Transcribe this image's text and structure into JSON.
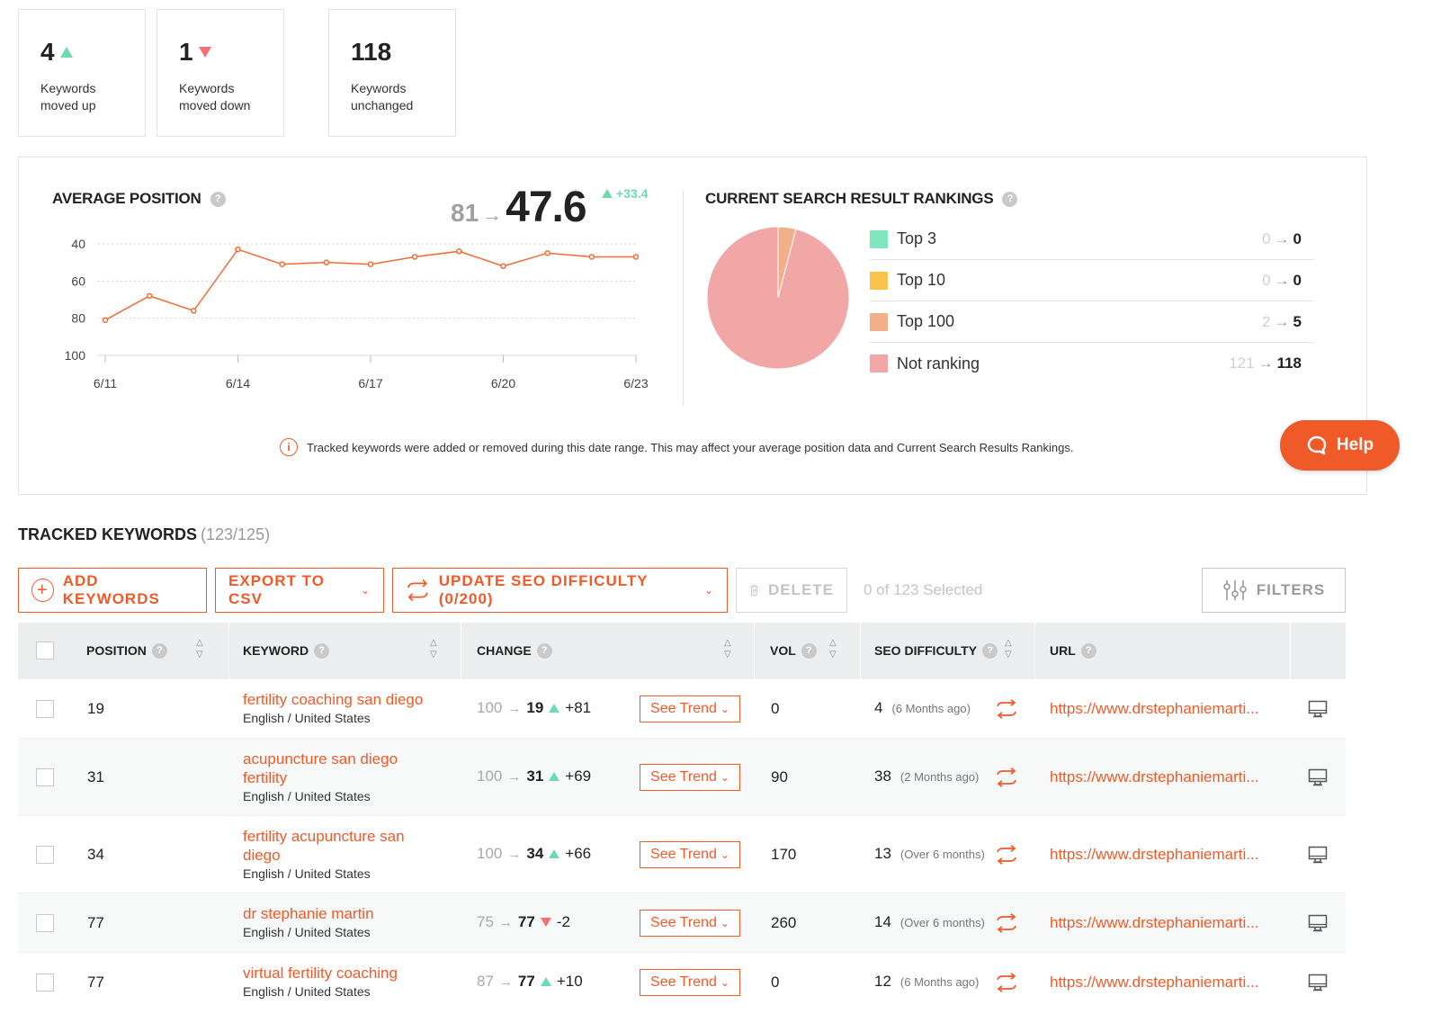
{
  "summary": {
    "up": {
      "value": "4",
      "label_line1": "Keywords",
      "label_line2": "moved up"
    },
    "down": {
      "value": "1",
      "label_line1": "Keywords",
      "label_line2": "moved down"
    },
    "unchanged": {
      "value": "118",
      "label_line1": "Keywords",
      "label_line2": "unchanged"
    }
  },
  "average_position": {
    "title": "AVERAGE POSITION",
    "from": "81",
    "arrow": "→",
    "to": "47.6",
    "change": "+33.4"
  },
  "chart_data": {
    "type": "line",
    "title": "AVERAGE POSITION",
    "x": [
      "6/11",
      "6/12",
      "6/13",
      "6/14",
      "6/15",
      "6/16",
      "6/17",
      "6/18",
      "6/19",
      "6/20",
      "6/21",
      "6/22",
      "6/23"
    ],
    "x_tick_labels": [
      "6/11",
      "6/14",
      "6/17",
      "6/20",
      "6/23"
    ],
    "series": [
      {
        "values": [
          81,
          68,
          76,
          43,
          51,
          50,
          51,
          47,
          44,
          52,
          45,
          47,
          47
        ]
      }
    ],
    "ylim": [
      100,
      40
    ],
    "y_ticks": [
      "40",
      "60",
      "80",
      "100"
    ],
    "y_inverted": true,
    "grid": true,
    "color": "#f26b33"
  },
  "rankings": {
    "title": "CURRENT SEARCH RESULT RANKINGS",
    "items": [
      {
        "label": "Top 3",
        "from": "0",
        "to": "0",
        "color": "#7fe6c0"
      },
      {
        "label": "Top 10",
        "from": "0",
        "to": "0",
        "color": "#f9c34e"
      },
      {
        "label": "Top 100",
        "from": "2",
        "to": "5",
        "color": "#f2b08a"
      },
      {
        "label": "Not ranking",
        "from": "121",
        "to": "118",
        "color": "#f2a7a7"
      }
    ],
    "pie": [
      {
        "label": "Top 100",
        "value": 5
      },
      {
        "label": "Not ranking",
        "value": 118
      }
    ]
  },
  "notice": "Tracked keywords were added or removed during this date range. This may affect your average position data and Current Search Results Rankings.",
  "help_label": "Help",
  "tracked": {
    "title": "TRACKED KEYWORDS",
    "count": "(123/125)",
    "buttons": {
      "add": "ADD KEYWORDS",
      "export": "EXPORT TO CSV",
      "update": "UPDATE SEO DIFFICULTY (0/200)",
      "delete": "DELETE",
      "filters": "FILTERS"
    },
    "selected": "0 of 123 Selected",
    "headers": {
      "position": "POSITION",
      "keyword": "KEYWORD",
      "change": "CHANGE",
      "vol": "VOL",
      "seo": "SEO DIFFICULTY",
      "url": "URL"
    },
    "see_trend": "See Trend",
    "rows": [
      {
        "position": "19",
        "keyword": "fertility coaching san diego",
        "keyword_line2": "",
        "locale": "English / United States",
        "from": "100",
        "to": "19",
        "dir": "up",
        "change": "+81",
        "vol": "0",
        "seo": "4",
        "seo_ago": "(6 Months ago)",
        "url": "https://www.drstephaniemarti..."
      },
      {
        "position": "31",
        "keyword": "acupuncture san diego",
        "keyword_line2": "fertility",
        "locale": "English / United States",
        "from": "100",
        "to": "31",
        "dir": "up",
        "change": "+69",
        "vol": "90",
        "seo": "38",
        "seo_ago": "(2 Months ago)",
        "url": "https://www.drstephaniemarti..."
      },
      {
        "position": "34",
        "keyword": "fertility acupuncture san",
        "keyword_line2": "diego",
        "locale": "English / United States",
        "from": "100",
        "to": "34",
        "dir": "up",
        "change": "+66",
        "vol": "170",
        "seo": "13",
        "seo_ago": "(Over 6 months)",
        "url": "https://www.drstephaniemarti..."
      },
      {
        "position": "77",
        "keyword": "dr stephanie martin",
        "keyword_line2": "",
        "locale": "English / United States",
        "from": "75",
        "to": "77",
        "dir": "down",
        "change": "-2",
        "vol": "260",
        "seo": "14",
        "seo_ago": "(Over 6 months)",
        "url": "https://www.drstephaniemarti..."
      },
      {
        "position": "77",
        "keyword": "virtual fertility coaching",
        "keyword_line2": "",
        "locale": "English / United States",
        "from": "87",
        "to": "77",
        "dir": "up",
        "change": "+10",
        "vol": "0",
        "seo": "12",
        "seo_ago": "(6 Months ago)",
        "url": "https://www.drstephaniemarti..."
      }
    ]
  }
}
